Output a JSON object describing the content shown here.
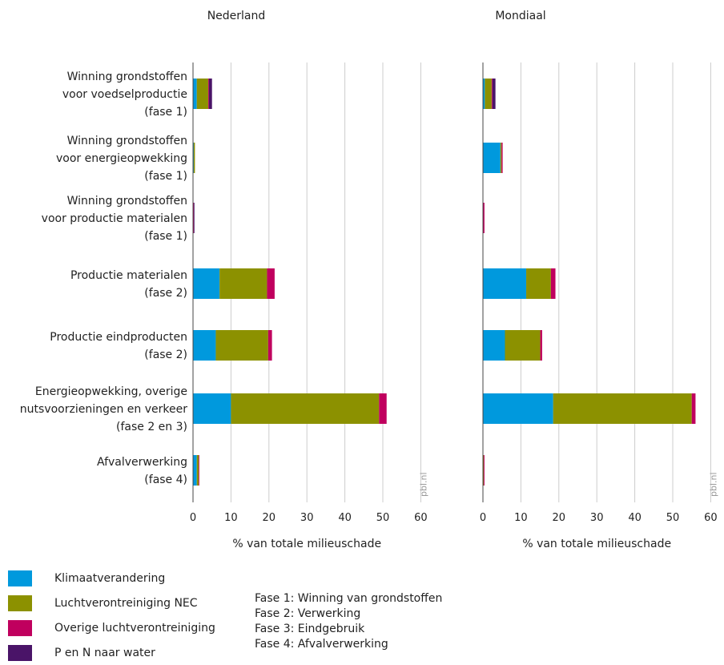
{
  "chart_data": [
    {
      "type": "bar",
      "orientation": "horizontal",
      "stacked": true,
      "title": "Nederland",
      "xlabel": "% van totale milieuschade",
      "xlim": [
        0,
        60
      ],
      "xticks": [
        "0",
        "10",
        "20",
        "30",
        "40",
        "50",
        "60"
      ],
      "grid": true,
      "source_label": "pbl.nl",
      "categories": [
        [
          "Winning grondstoffen",
          "voor voedselproductie",
          "(fase 1)"
        ],
        [
          "Winning grondstoffen",
          "voor energieopwekking",
          "(fase 1)"
        ],
        [
          "Winning grondstoffen",
          "voor productie materialen",
          "(fase 1)"
        ],
        [
          "Productie materialen",
          "(fase 2)"
        ],
        [
          "Productie eindproducten",
          "(fase 2)"
        ],
        [
          "Energieopwekking, overige",
          "nutsvoorzieningen en verkeer",
          "(fase 2 en 3)"
        ],
        [
          "Afvalverwerking",
          "(fase 4)"
        ]
      ],
      "series": [
        {
          "name": "Klimaatverandering",
          "values": [
            1.0,
            0.2,
            0.1,
            7.0,
            6.0,
            10.0,
            1.0
          ]
        },
        {
          "name": "Luchtverontreiniging NEC",
          "values": [
            3.0,
            0.3,
            0.0,
            12.5,
            13.8,
            39.0,
            0.5
          ]
        },
        {
          "name": "Overige luchtverontreiniging",
          "values": [
            0.2,
            0.0,
            0.1,
            2.0,
            1.0,
            2.0,
            0.1
          ]
        },
        {
          "name": "P en N naar water",
          "values": [
            0.8,
            0.0,
            0.1,
            0.0,
            0.0,
            0.0,
            0.0
          ]
        }
      ]
    },
    {
      "type": "bar",
      "orientation": "horizontal",
      "stacked": true,
      "title": "Mondiaal",
      "xlabel": "% van totale milieuschade",
      "xlim": [
        0,
        60
      ],
      "xticks": [
        "0",
        "10",
        "20",
        "30",
        "40",
        "50",
        "60"
      ],
      "grid": true,
      "source_label": "pbl.nl",
      "series": [
        {
          "name": "Klimaatverandering",
          "values": [
            0.5,
            4.6,
            0.1,
            11.4,
            5.8,
            18.5,
            0.1
          ]
        },
        {
          "name": "Luchtverontreiniging NEC",
          "values": [
            1.8,
            0.3,
            0.0,
            6.5,
            9.3,
            36.5,
            0.1
          ]
        },
        {
          "name": "Overige luchtverontreiniging",
          "values": [
            0.2,
            0.3,
            0.3,
            1.2,
            0.5,
            1.0,
            0.2
          ]
        },
        {
          "name": "P en N naar water",
          "values": [
            0.8,
            0.0,
            0.0,
            0.0,
            0.0,
            0.0,
            0.0
          ]
        }
      ]
    }
  ],
  "colors": {
    "Klimaatverandering": "#0099dd",
    "Luchtverontreiniging NEC": "#8c9100",
    "Overige luchtverontreiniging": "#c0005e",
    "P en N naar water": "#4a1468"
  },
  "legend": [
    {
      "label": "Klimaatverandering",
      "color": "#0099dd"
    },
    {
      "label": "Luchtverontreiniging NEC",
      "color": "#8c9100"
    },
    {
      "label": "Overige luchtverontreiniging",
      "color": "#c0005e"
    },
    {
      "label": "P en N naar water",
      "color": "#4a1468"
    }
  ],
  "notes": [
    "Fase 1: Winning van grondstoffen",
    "Fase 2: Verwerking",
    "Fase 3: Eindgebruik",
    "Fase 4: Afvalverwerking"
  ]
}
